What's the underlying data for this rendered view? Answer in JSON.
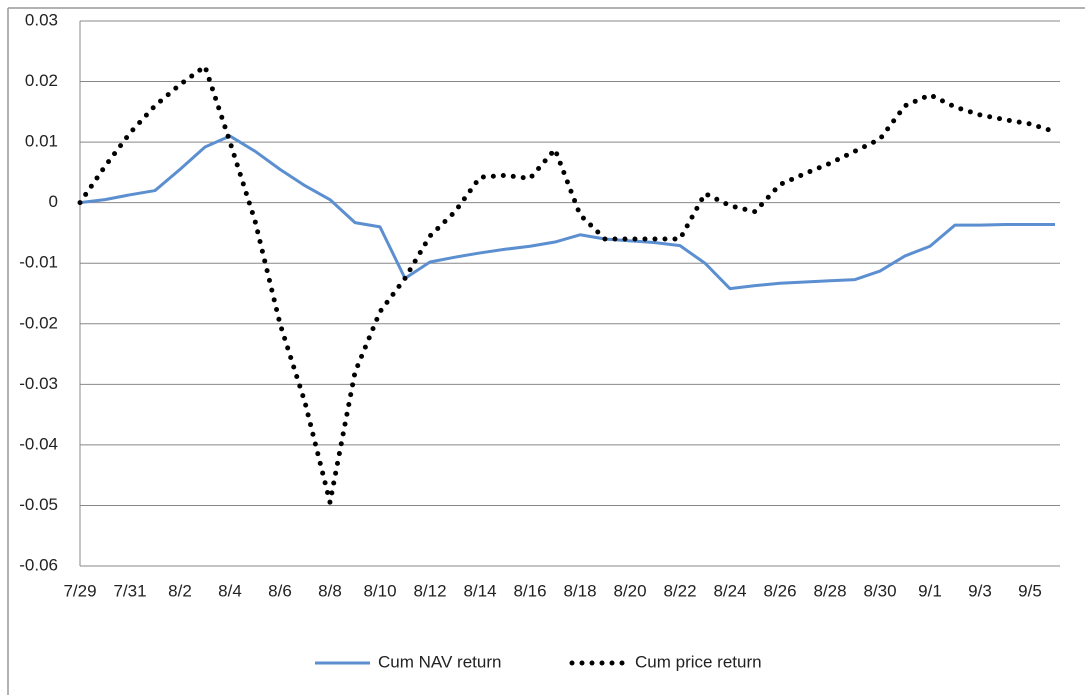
{
  "chart_data": {
    "type": "line",
    "categories": [
      "7/29",
      null,
      "7/31",
      null,
      "8/2",
      null,
      "8/4",
      null,
      "8/6",
      null,
      "8/8",
      null,
      "8/10",
      null,
      "8/12",
      null,
      "8/14",
      null,
      "8/16",
      null,
      "8/18",
      null,
      "8/20",
      null,
      "8/22",
      null,
      "8/24",
      null,
      "8/26",
      null,
      "8/28",
      null,
      "8/30",
      null,
      "9/1",
      null,
      "9/3",
      null,
      "9/5",
      null
    ],
    "series": [
      {
        "name": "Cum NAV return",
        "color": "#5b8fd0",
        "style": "solid",
        "values": [
          0,
          0.0005,
          0.0013,
          0.002,
          0.0055,
          0.0092,
          0.011,
          0.0085,
          0.0055,
          0.0028,
          0.0005,
          -0.0033,
          -0.004,
          -0.0125,
          -0.0098,
          -0.009,
          -0.0083,
          -0.0077,
          -0.0072,
          -0.0065,
          -0.0053,
          -0.006,
          -0.0063,
          -0.0066,
          -0.0071,
          -0.01,
          -0.0142,
          -0.0137,
          -0.0133,
          -0.0131,
          -0.0129,
          -0.0127,
          -0.0113,
          -0.0088,
          -0.0072,
          -0.0037,
          -0.0037,
          -0.0036,
          -0.0036,
          -0.0036
        ]
      },
      {
        "name": "Cum price return",
        "color": "#000000",
        "style": "dotted",
        "values": [
          0,
          0.006,
          0.0115,
          0.016,
          0.0195,
          0.0225,
          0.01,
          -0.003,
          -0.02,
          -0.033,
          -0.0495,
          -0.028,
          -0.018,
          -0.0125,
          -0.0055,
          -0.0015,
          0.0042,
          0.0045,
          0.004,
          0.0088,
          -0.002,
          -0.006,
          -0.006,
          -0.006,
          -0.006,
          0.0015,
          -0.0005,
          -0.0015,
          0.003,
          0.0048,
          0.0065,
          0.0085,
          0.0105,
          0.016,
          0.0178,
          0.0158,
          0.0145,
          0.0137,
          0.013,
          0.0117
        ]
      }
    ],
    "ylim": [
      -0.06,
      0.03
    ],
    "yticks": [
      -0.06,
      -0.05,
      -0.04,
      -0.03,
      -0.02,
      -0.01,
      0,
      0.01,
      0.02,
      0.03
    ],
    "grid": true,
    "legend": "bottom"
  }
}
